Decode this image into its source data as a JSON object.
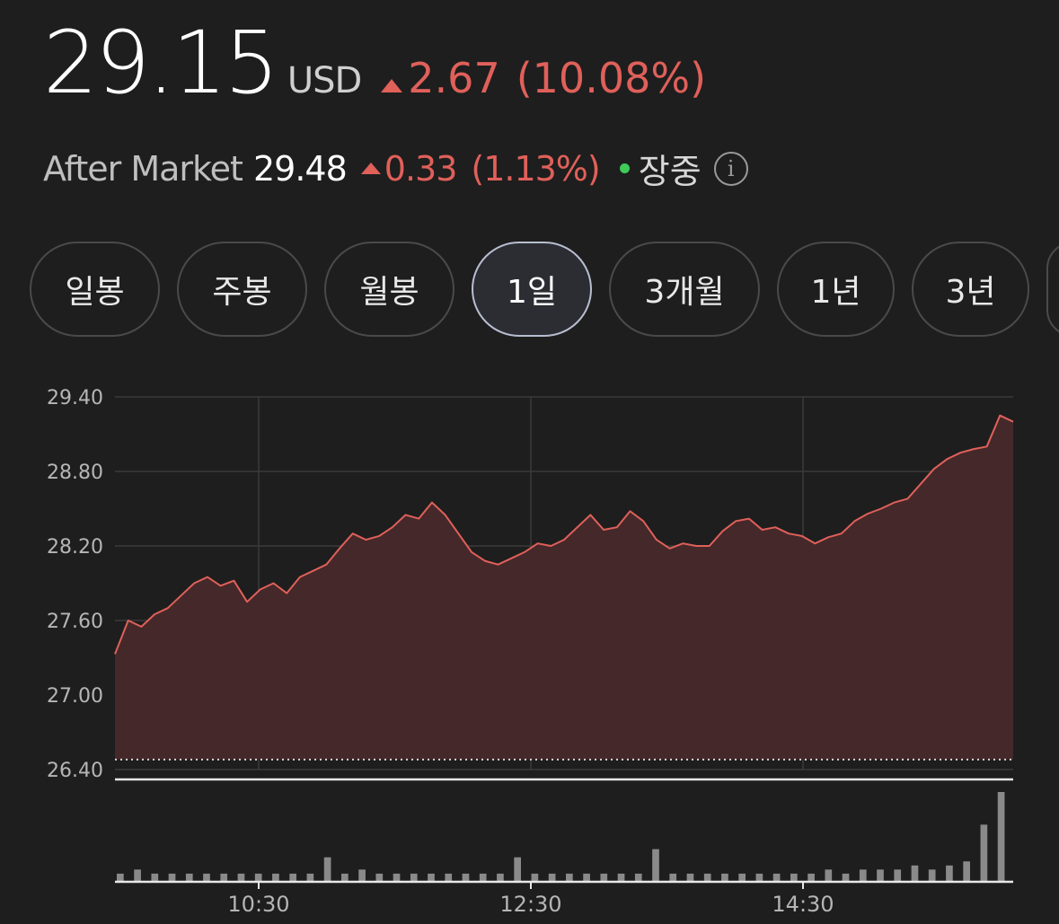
{
  "quote": {
    "price": "29.15",
    "currency": "USD",
    "change": "2.67",
    "change_pct": "(10.08%)",
    "up_color": "#e0605a"
  },
  "after_market": {
    "label": "After Market",
    "price": "29.48",
    "change": "0.33",
    "change_pct": "(1.13%)",
    "status": "장중",
    "status_color": "#3ecb58",
    "info_icon": "info-icon"
  },
  "tabs": [
    {
      "label": "일봉",
      "active": false
    },
    {
      "label": "주봉",
      "active": false
    },
    {
      "label": "월봉",
      "active": false
    },
    {
      "label": "1일",
      "active": true
    },
    {
      "label": "3개월",
      "active": false
    },
    {
      "label": "1년",
      "active": false
    },
    {
      "label": "3년",
      "active": false
    }
  ],
  "chart_data": {
    "type": "area",
    "ylim": [
      26.4,
      29.4
    ],
    "y_ticks": [
      "29.40",
      "28.80",
      "28.20",
      "27.60",
      "27.00",
      "26.40"
    ],
    "x_ticks": [
      "10:30",
      "12:30",
      "14:30"
    ],
    "reference_line": 26.48,
    "series": [
      {
        "values": [
          27.33,
          27.6,
          27.55,
          27.65,
          27.7,
          27.8,
          27.9,
          27.95,
          27.88,
          27.92,
          27.75,
          27.85,
          27.9,
          27.82,
          27.95,
          28.0,
          28.05,
          28.18,
          28.3,
          28.25,
          28.28,
          28.35,
          28.45,
          28.42,
          28.55,
          28.45,
          28.3,
          28.15,
          28.08,
          28.05,
          28.1,
          28.15,
          28.22,
          28.2,
          28.25,
          28.35,
          28.45,
          28.33,
          28.35,
          28.48,
          28.4,
          28.25,
          28.18,
          28.22,
          28.2,
          28.2,
          28.32,
          28.4,
          28.42,
          28.33,
          28.35,
          28.3,
          28.28,
          28.22,
          28.27,
          28.3,
          28.4,
          28.46,
          28.5,
          28.55,
          28.58,
          28.7,
          28.82,
          28.9,
          28.95,
          28.98,
          29.0,
          29.25,
          29.2
        ],
        "color": "#e0605a"
      }
    ],
    "volume": [
      2,
      3,
      2,
      2,
      2,
      2,
      2,
      2,
      2,
      2,
      2,
      2,
      6,
      2,
      3,
      2,
      2,
      2,
      2,
      2,
      2,
      2,
      2,
      6,
      2,
      2,
      2,
      2,
      2,
      2,
      2,
      8,
      2,
      2,
      2,
      2,
      2,
      2,
      2,
      2,
      2,
      3,
      2,
      3,
      3,
      3,
      4,
      3,
      4,
      5,
      14,
      22
    ]
  }
}
